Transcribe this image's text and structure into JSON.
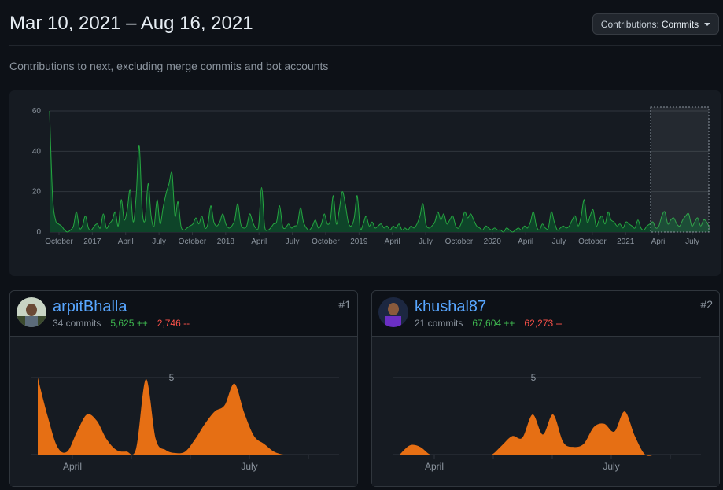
{
  "header": {
    "title": "Mar 10, 2021 – Aug 16, 2021",
    "contributions_label": "Contributions:",
    "contributions_value": "Commits"
  },
  "subtitle": "Contributions to next, excluding merge commits and bot accounts",
  "colors": {
    "main_fill": "#0e4429",
    "main_stroke": "#26a641",
    "card_fill": "#e66f14",
    "grid": "#30363d",
    "selection": "#8b949e"
  },
  "chart_data": [
    {
      "type": "area",
      "title": "",
      "yticks": [
        0,
        20,
        40,
        60
      ],
      "ylim": [
        0,
        60
      ],
      "xlabels": [
        "October",
        "2017",
        "April",
        "July",
        "October",
        "2018",
        "April",
        "July",
        "October",
        "2019",
        "April",
        "July",
        "October",
        "2020",
        "April",
        "July",
        "October",
        "2021",
        "April",
        "July"
      ],
      "values": [
        60,
        18,
        6,
        4,
        3,
        1,
        0,
        1,
        3,
        10,
        2,
        3,
        8,
        2,
        1,
        3,
        4,
        2,
        9,
        2,
        4,
        6,
        10,
        3,
        16,
        6,
        11,
        21,
        5,
        18,
        43,
        11,
        6,
        24,
        8,
        3,
        16,
        4,
        12,
        19,
        24,
        29,
        8,
        15,
        3,
        1,
        2,
        3,
        4,
        7,
        4,
        8,
        2,
        4,
        13,
        5,
        3,
        5,
        9,
        4,
        2,
        3,
        6,
        14,
        4,
        2,
        3,
        9,
        5,
        2,
        3,
        22,
        3,
        1,
        2,
        4,
        5,
        13,
        3,
        2,
        4,
        2,
        3,
        4,
        12,
        5,
        2,
        1,
        3,
        6,
        2,
        4,
        9,
        4,
        6,
        18,
        4,
        11,
        20,
        14,
        5,
        3,
        7,
        18,
        2,
        4,
        8,
        3,
        5,
        2,
        3,
        4,
        2,
        3,
        1,
        3,
        2,
        4,
        1,
        2,
        1,
        3,
        2,
        4,
        8,
        14,
        4,
        2,
        3,
        5,
        10,
        6,
        9,
        4,
        6,
        8,
        3,
        2,
        5,
        10,
        7,
        9,
        6,
        3,
        2,
        1,
        3,
        2,
        1,
        2,
        1,
        1,
        0,
        2,
        1,
        0,
        1,
        2,
        1,
        3,
        2,
        5,
        10,
        3,
        1,
        4,
        2,
        2,
        10,
        5,
        1,
        2,
        3,
        2,
        3,
        6,
        8,
        3,
        8,
        16,
        5,
        8,
        11,
        3,
        6,
        8,
        4,
        10,
        6,
        5,
        3,
        4,
        2,
        5,
        4,
        3,
        2,
        6,
        2,
        1,
        3,
        4,
        5,
        2,
        3,
        8,
        10,
        4,
        6,
        7,
        4,
        3,
        6,
        8,
        9,
        3,
        5,
        7,
        3,
        6,
        5,
        2
      ]
    },
    {
      "type": "area",
      "series": "arpitBhalla",
      "ytick": "5",
      "ylim": [
        0,
        5
      ],
      "xlabels": [
        "April",
        "July"
      ],
      "values": [
        5,
        2.5,
        0.5,
        0.2,
        1.5,
        2.6,
        2.2,
        1.0,
        0.3,
        0.2,
        0.4,
        4.9,
        1.0,
        0.3,
        0.1,
        0.2,
        1.0,
        2.0,
        2.8,
        3.2,
        4.6,
        2.7,
        1.2,
        0.7,
        0.2,
        0,
        0
      ]
    },
    {
      "type": "area",
      "series": "khushal87",
      "ytick": "5",
      "ylim": [
        0,
        5
      ],
      "xlabels": [
        "April",
        "July"
      ],
      "values": [
        0,
        0.6,
        0.5,
        0,
        0,
        0,
        0,
        0,
        0,
        0,
        0.6,
        1.2,
        1.1,
        2.6,
        1.3,
        2.6,
        0.8,
        0.5,
        0.7,
        1.8,
        2.0,
        1.5,
        2.8,
        1.2,
        0,
        0
      ]
    }
  ],
  "contributors": [
    {
      "name": "arpitBhalla",
      "commits": "34 commits",
      "additions": "5,625 ++",
      "deletions": "2,746 --",
      "rank": "#1"
    },
    {
      "name": "khushal87",
      "commits": "21 commits",
      "additions": "67,604 ++",
      "deletions": "62,273 --",
      "rank": "#2"
    }
  ]
}
